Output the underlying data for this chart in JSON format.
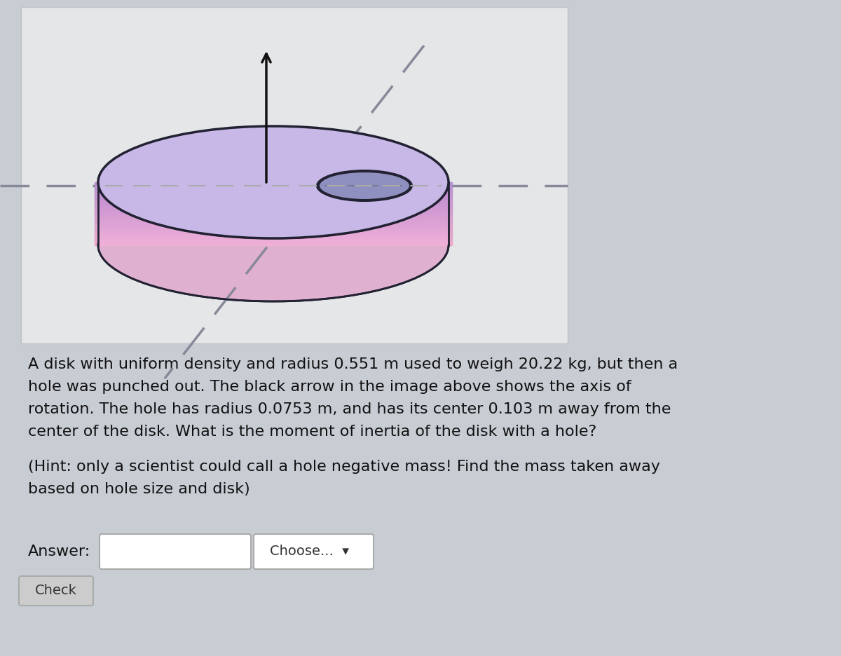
{
  "bg_color": "#c8cdd4",
  "panel_color": "#e4e6e8",
  "panel_border": "#c0c2c5",
  "disk_top_color": "#c8b8e8",
  "disk_top_color2": "#d0c0f0",
  "disk_side_top": "#b8a0d8",
  "disk_side_bot": "#e8b8d0",
  "disk_edge_color": "#222233",
  "hole_fill": "#9090c0",
  "hole_border": "#222233",
  "dashed_color": "#888899",
  "arrow_color": "#111111",
  "text_color": "#111111",
  "text_main_line1": "A disk with uniform density and radius 0.551 m used to weigh 20.22 kg, but then a",
  "text_main_line2": "hole was punched out. The black arrow in the image above shows the axis of",
  "text_main_line3": "rotation. The hole has radius 0.0753 m, and has its center 0.103 m away from the",
  "text_main_line4": "center of the disk. What is the moment of inertia of the disk with a hole?",
  "text_hint_line1": "(Hint: only a scientist could call a hole negative mass! Find the mass taken away",
  "text_hint_line2": "based on hole size and disk)",
  "label_answer": "Answer:",
  "label_choose": "Choose...",
  "label_check": "Check",
  "font_size_main": 16,
  "font_size_ui": 14
}
